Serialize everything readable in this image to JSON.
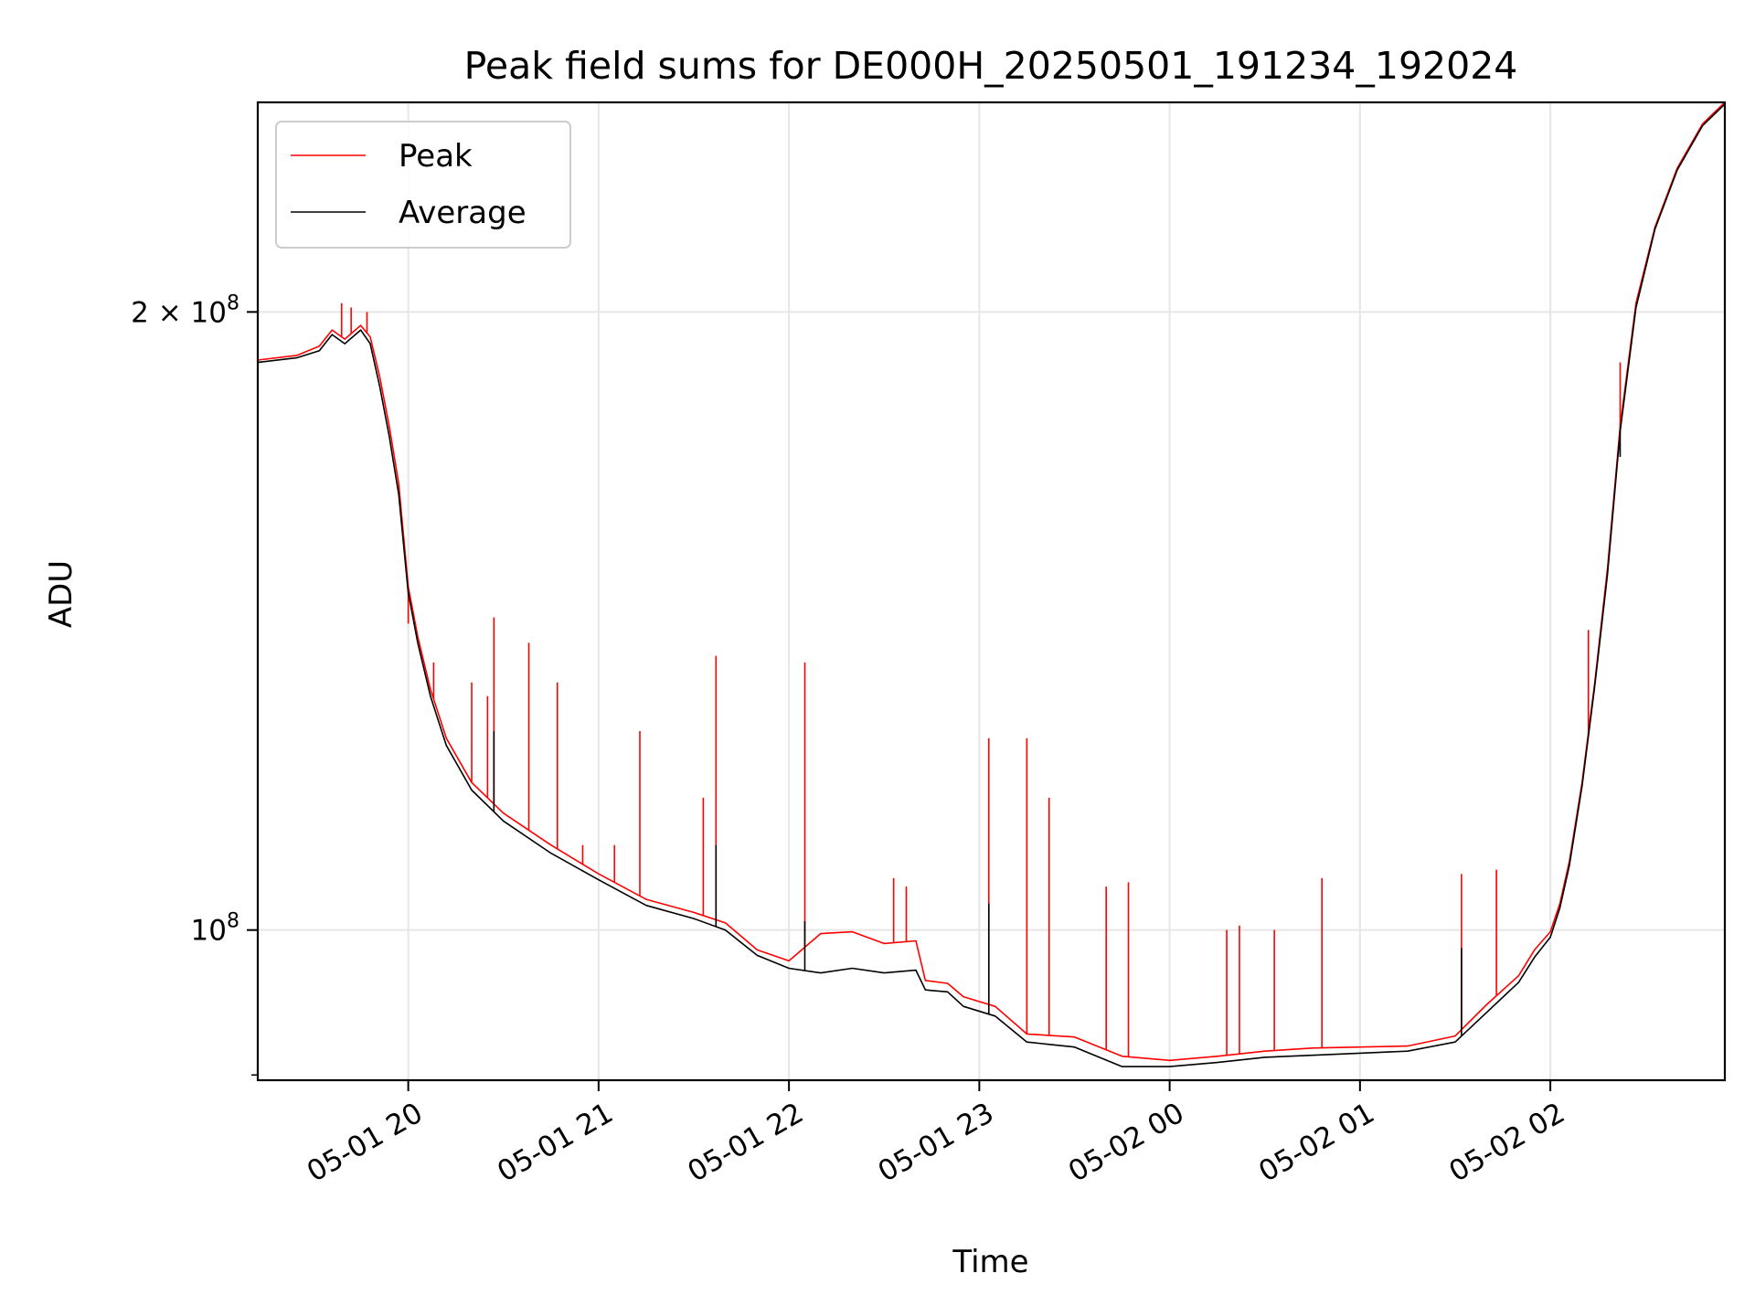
{
  "chart_data": {
    "type": "line",
    "title": "Peak field sums for DE000H_20250501_191234_192024",
    "xlabel": "Time",
    "ylabel": "ADU",
    "x_start": "2025-05-01 19:12:34",
    "x_end": "2025-05-02 02:55:00",
    "x_ticks": [
      {
        "x": "2025-05-01 20:00",
        "label": "05-01 20"
      },
      {
        "x": "2025-05-01 21:00",
        "label": "05-01 21"
      },
      {
        "x": "2025-05-01 22:00",
        "label": "05-01 22"
      },
      {
        "x": "2025-05-01 23:00",
        "label": "05-01 23"
      },
      {
        "x": "2025-05-02 00:00",
        "label": "05-02 00"
      },
      {
        "x": "2025-05-02 01:00",
        "label": "05-02 01"
      },
      {
        "x": "2025-05-02 02:00",
        "label": "05-02 02"
      }
    ],
    "yscale": "log",
    "ylim": [
      84500000,
      253000000
    ],
    "y_ticks": [
      {
        "y": 100000000,
        "base": "10",
        "exp": "8"
      },
      {
        "y": 200000000,
        "base": "2 × 10",
        "exp": "8"
      }
    ],
    "grid": true,
    "legend": "upper-left",
    "series": [
      {
        "name": "Peak",
        "color": "#ff0000",
        "points": [
          [
            "2025-05-01 19:12:34",
            189500000
          ],
          [
            "2025-05-01 19:25",
            190500000
          ],
          [
            "2025-05-01 19:32",
            192500000
          ],
          [
            "2025-05-01 19:36",
            196000000
          ],
          [
            "2025-05-01 19:40",
            194000000
          ],
          [
            "2025-05-01 19:45",
            197000000
          ],
          [
            "2025-05-01 19:48",
            194500000
          ],
          [
            "2025-05-01 19:51",
            186000000
          ],
          [
            "2025-05-01 19:54",
            176000000
          ],
          [
            "2025-05-01 19:57",
            165000000
          ],
          [
            "2025-05-01 20:00",
            147000000
          ],
          [
            "2025-05-01 20:03",
            139000000
          ],
          [
            "2025-05-01 20:07",
            131000000
          ],
          [
            "2025-05-01 20:12",
            124000000
          ],
          [
            "2025-05-01 20:20",
            118000000
          ],
          [
            "2025-05-01 20:30",
            114000000
          ],
          [
            "2025-05-01 20:45",
            110000000
          ],
          [
            "2025-05-01 21:00",
            106500000
          ],
          [
            "2025-05-01 21:15",
            103500000
          ],
          [
            "2025-05-01 21:30",
            102000000
          ],
          [
            "2025-05-01 21:40",
            100800000
          ],
          [
            "2025-05-01 21:50",
            97800000
          ],
          [
            "2025-05-01 22:00",
            96600000
          ],
          [
            "2025-05-01 22:10",
            99600000
          ],
          [
            "2025-05-01 22:20",
            99800000
          ],
          [
            "2025-05-01 22:30",
            98500000
          ],
          [
            "2025-05-01 22:40",
            98800000
          ],
          [
            "2025-05-01 22:43",
            94500000
          ],
          [
            "2025-05-01 22:50",
            94200000
          ],
          [
            "2025-05-01 22:55",
            92800000
          ],
          [
            "2025-05-01 23:05",
            91800000
          ],
          [
            "2025-05-01 23:15",
            89000000
          ],
          [
            "2025-05-01 23:30",
            88700000
          ],
          [
            "2025-05-01 23:45",
            86800000
          ],
          [
            "2025-05-02 00:00",
            86400000
          ],
          [
            "2025-05-02 00:15",
            86800000
          ],
          [
            "2025-05-02 00:30",
            87300000
          ],
          [
            "2025-05-02 00:45",
            87600000
          ],
          [
            "2025-05-02 01:00",
            87700000
          ],
          [
            "2025-05-02 01:15",
            87800000
          ],
          [
            "2025-05-02 01:30",
            88800000
          ],
          [
            "2025-05-02 01:40",
            92000000
          ],
          [
            "2025-05-02 01:50",
            95000000
          ],
          [
            "2025-05-02 01:55",
            97800000
          ],
          [
            "2025-05-02 02:00",
            99800000
          ],
          [
            "2025-05-02 02:03",
            103000000
          ],
          [
            "2025-05-02 02:06",
            108000000
          ],
          [
            "2025-05-02 02:10",
            118000000
          ],
          [
            "2025-05-02 02:14",
            132000000
          ],
          [
            "2025-05-02 02:18",
            150000000
          ],
          [
            "2025-05-02 02:22",
            176000000
          ],
          [
            "2025-05-02 02:27",
            202000000
          ],
          [
            "2025-05-02 02:33",
            220000000
          ],
          [
            "2025-05-02 02:40",
            235000000
          ],
          [
            "2025-05-02 02:48",
            247000000
          ],
          [
            "2025-05-02 02:55",
            253000000
          ]
        ],
        "spikes": [
          [
            "2025-05-01 19:39",
            202000000
          ],
          [
            "2025-05-01 19:42",
            201000000
          ],
          [
            "2025-05-01 19:47",
            200000000
          ],
          [
            "2025-05-01 20:00",
            141000000
          ],
          [
            "2025-05-01 20:08",
            135000000
          ],
          [
            "2025-05-01 20:20",
            132000000
          ],
          [
            "2025-05-01 20:25",
            130000000
          ],
          [
            "2025-05-01 20:27",
            142000000
          ],
          [
            "2025-05-01 20:38",
            138000000
          ],
          [
            "2025-05-01 20:47",
            132000000
          ],
          [
            "2025-05-01 20:55",
            110000000
          ],
          [
            "2025-05-01 21:05",
            110000000
          ],
          [
            "2025-05-01 21:13",
            125000000
          ],
          [
            "2025-05-01 21:33",
            116000000
          ],
          [
            "2025-05-01 21:37",
            136000000
          ],
          [
            "2025-05-01 22:05",
            135000000
          ],
          [
            "2025-05-01 22:33",
            106000000
          ],
          [
            "2025-05-01 22:37",
            105000000
          ],
          [
            "2025-05-01 23:03",
            124000000
          ],
          [
            "2025-05-01 23:15",
            124000000
          ],
          [
            "2025-05-01 23:22",
            116000000
          ],
          [
            "2025-05-01 23:40",
            105000000
          ],
          [
            "2025-05-01 23:47",
            105500000
          ],
          [
            "2025-05-02 00:18",
            100000000
          ],
          [
            "2025-05-02 00:22",
            100500000
          ],
          [
            "2025-05-02 00:33",
            100000000
          ],
          [
            "2025-05-02 00:48",
            106000000
          ],
          [
            "2025-05-02 01:32",
            106500000
          ],
          [
            "2025-05-02 01:43",
            107000000
          ],
          [
            "2025-05-02 02:12",
            140000000
          ],
          [
            "2025-05-02 02:22",
            189000000
          ]
        ]
      },
      {
        "name": "Average",
        "color": "#000000",
        "points": [
          [
            "2025-05-01 19:12:34",
            189000000
          ],
          [
            "2025-05-01 19:25",
            190000000
          ],
          [
            "2025-05-01 19:32",
            191500000
          ],
          [
            "2025-05-01 19:36",
            195000000
          ],
          [
            "2025-05-01 19:40",
            193000000
          ],
          [
            "2025-05-01 19:45",
            196000000
          ],
          [
            "2025-05-01 19:48",
            193000000
          ],
          [
            "2025-05-01 19:51",
            184000000
          ],
          [
            "2025-05-01 19:54",
            174000000
          ],
          [
            "2025-05-01 19:57",
            163000000
          ],
          [
            "2025-05-01 20:00",
            146000000
          ],
          [
            "2025-05-01 20:03",
            138000000
          ],
          [
            "2025-05-01 20:07",
            130000000
          ],
          [
            "2025-05-01 20:12",
            123000000
          ],
          [
            "2025-05-01 20:20",
            117000000
          ],
          [
            "2025-05-01 20:30",
            113000000
          ],
          [
            "2025-05-01 20:45",
            109000000
          ],
          [
            "2025-05-01 21:00",
            105800000
          ],
          [
            "2025-05-01 21:15",
            102800000
          ],
          [
            "2025-05-01 21:30",
            101300000
          ],
          [
            "2025-05-01 21:40",
            100000000
          ],
          [
            "2025-05-01 21:50",
            97200000
          ],
          [
            "2025-05-01 22:00",
            95800000
          ],
          [
            "2025-05-01 22:10",
            95300000
          ],
          [
            "2025-05-01 22:20",
            95800000
          ],
          [
            "2025-05-01 22:30",
            95300000
          ],
          [
            "2025-05-01 22:40",
            95600000
          ],
          [
            "2025-05-01 22:43",
            93500000
          ],
          [
            "2025-05-01 22:50",
            93300000
          ],
          [
            "2025-05-01 22:55",
            91800000
          ],
          [
            "2025-05-01 23:05",
            90800000
          ],
          [
            "2025-05-01 23:15",
            88200000
          ],
          [
            "2025-05-01 23:30",
            87700000
          ],
          [
            "2025-05-01 23:45",
            85800000
          ],
          [
            "2025-05-02 00:00",
            85800000
          ],
          [
            "2025-05-02 00:15",
            86200000
          ],
          [
            "2025-05-02 00:30",
            86700000
          ],
          [
            "2025-05-02 00:45",
            86900000
          ],
          [
            "2025-05-02 01:00",
            87100000
          ],
          [
            "2025-05-02 01:15",
            87300000
          ],
          [
            "2025-05-02 01:30",
            88200000
          ],
          [
            "2025-05-02 01:40",
            91200000
          ],
          [
            "2025-05-02 01:50",
            94300000
          ],
          [
            "2025-05-02 01:55",
            97000000
          ],
          [
            "2025-05-02 02:00",
            99200000
          ],
          [
            "2025-05-02 02:03",
            102500000
          ],
          [
            "2025-05-02 02:06",
            107500000
          ],
          [
            "2025-05-02 02:10",
            117500000
          ],
          [
            "2025-05-02 02:14",
            131500000
          ],
          [
            "2025-05-02 02:18",
            149000000
          ],
          [
            "2025-05-02 02:22",
            175000000
          ],
          [
            "2025-05-02 02:27",
            201000000
          ],
          [
            "2025-05-02 02:33",
            219500000
          ],
          [
            "2025-05-02 02:40",
            234500000
          ],
          [
            "2025-05-02 02:48",
            246500000
          ],
          [
            "2025-05-02 02:55",
            252500000
          ]
        ],
        "spikes": [
          [
            "2025-05-01 20:27",
            125000000
          ],
          [
            "2025-05-01 21:37",
            110000000
          ],
          [
            "2025-05-01 22:05",
            101000000
          ],
          [
            "2025-05-01 23:03",
            103000000
          ],
          [
            "2025-05-02 01:32",
            98000000
          ],
          [
            "2025-05-02 02:22",
            170000000
          ]
        ]
      }
    ]
  }
}
